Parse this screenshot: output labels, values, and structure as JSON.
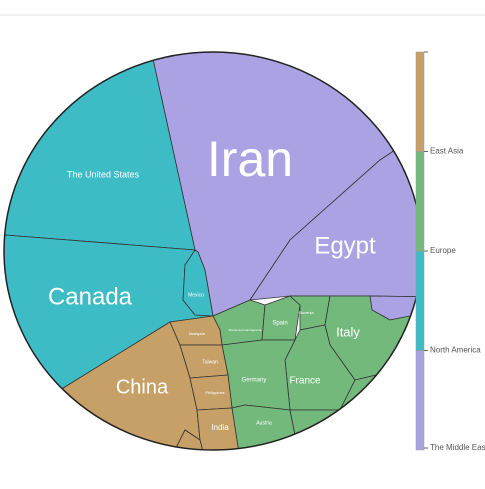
{
  "chart_data": {
    "type": "voronoi_treemap",
    "groups": [
      {
        "name": "The Middle East",
        "color": "#aba2e3",
        "children": [
          {
            "name": "Iran",
            "value": 28
          },
          {
            "name": "Egypt",
            "value": 8
          },
          {
            "name": null,
            "value": 0.5
          }
        ]
      },
      {
        "name": "North America",
        "color": "#3dbcc6",
        "children": [
          {
            "name": "The United States",
            "value": 14
          },
          {
            "name": "Canada",
            "value": 15
          },
          {
            "name": "Mexico",
            "value": 1
          }
        ]
      },
      {
        "name": "Europe",
        "color": "#74b97c",
        "children": [
          {
            "name": "Bosnia and Herzegovina",
            "value": 1
          },
          {
            "name": "Spain",
            "value": 1
          },
          {
            "name": "Slovenia",
            "value": 1
          },
          {
            "name": "Italy",
            "value": 4
          },
          {
            "name": "France",
            "value": 4
          },
          {
            "name": "Germany",
            "value": 3
          },
          {
            "name": "Austria",
            "value": 1
          },
          {
            "name": null,
            "value": 2
          }
        ]
      },
      {
        "name": "East Asia",
        "color": "#c6a066",
        "children": [
          {
            "name": "China",
            "value": 11
          },
          {
            "name": "Malaysia",
            "value": 1
          },
          {
            "name": "Taiwan",
            "value": 1
          },
          {
            "name": "Philippines",
            "value": 1
          },
          {
            "name": "India",
            "value": 2
          },
          {
            "name": null,
            "value": 0.5
          }
        ]
      }
    ]
  }
}
